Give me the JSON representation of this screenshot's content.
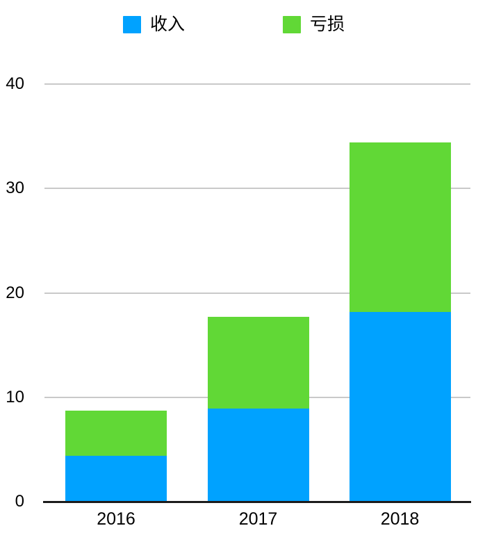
{
  "chart_data": {
    "type": "bar",
    "stacked": true,
    "title": "",
    "categories": [
      "2016",
      "2017",
      "2018"
    ],
    "series": [
      {
        "key": "income",
        "name": "收入",
        "color": "#00A2FF",
        "values": [
          4.4,
          8.9,
          18.2
        ]
      },
      {
        "key": "loss",
        "name": "亏损",
        "color": "#61D836",
        "values": [
          4.3,
          8.8,
          16.2
        ]
      }
    ],
    "stack_totals": [
      8.7,
      17.7,
      34.4
    ],
    "xlabel": "",
    "ylabel": "",
    "ylim": [
      0,
      40
    ],
    "yticks": [
      0,
      10,
      20,
      30,
      40
    ],
    "grid": true,
    "legend_position": "top",
    "background_color": "#FFFFFF",
    "gridline_color": "#C9C9C9",
    "axis_line_color": "#1C1C1C",
    "text_color": "#000000"
  }
}
